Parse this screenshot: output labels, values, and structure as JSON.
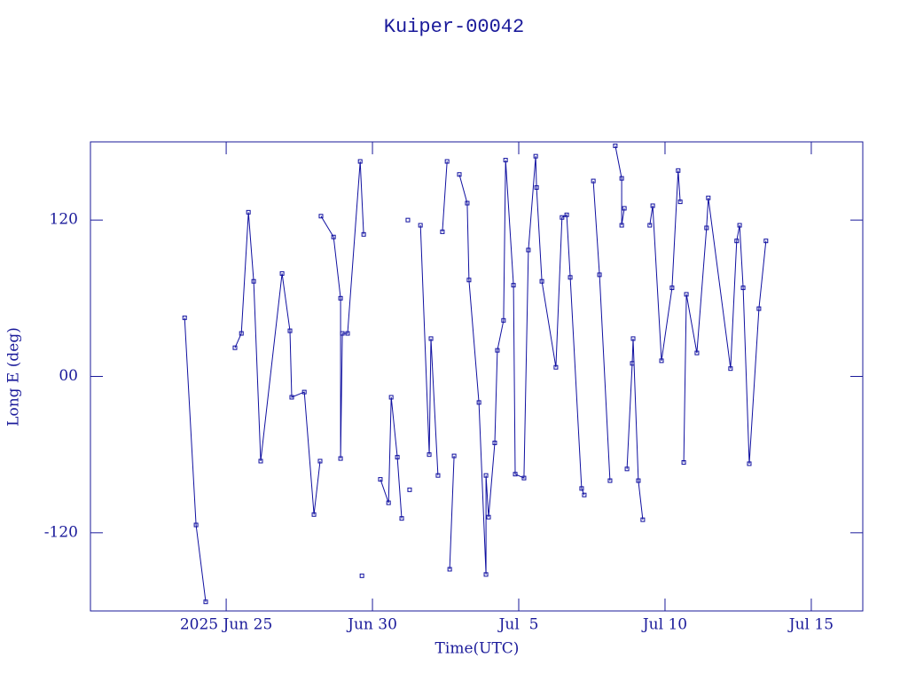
{
  "chart_data": {
    "type": "line",
    "title": "Kuiper-00042",
    "x_label": "Time(UTC)",
    "y_label": "Long E (deg)",
    "xlim": [
      -4.64,
      21.76
    ],
    "ylim": [
      -180,
      180
    ],
    "xticks": [
      {
        "value": 0,
        "label": "2025 Jun 25"
      },
      {
        "value": 5,
        "label": "Jun 30"
      },
      {
        "value": 10,
        "label": "Jul  5"
      },
      {
        "value": 15,
        "label": "Jul 10"
      },
      {
        "value": 20,
        "label": "Jul 15"
      }
    ],
    "yticks": [
      -120,
      {
        "value": 0,
        "label": "00"
      },
      120
    ],
    "series": [
      {
        "color": "#1010a0",
        "x": [
          -1.42,
          -1.03,
          -0.7,
          null,
          0.3,
          0.52,
          0.76,
          0.94,
          1.18,
          1.91,
          2.18,
          2.24,
          2.67,
          3.0,
          3.21,
          null,
          3.24,
          3.67,
          3.91,
          3.91,
          3.97,
          4.15,
          4.58,
          4.7,
          null,
          4.64,
          null,
          5.27,
          5.55,
          5.64,
          5.85,
          6.0,
          null,
          6.21,
          null,
          6.27,
          null,
          6.64,
          6.94,
          7.0,
          7.24,
          null,
          7.39,
          7.55,
          null,
          7.64,
          7.79,
          null,
          7.97,
          8.24,
          8.3,
          8.64,
          8.88,
          8.88,
          8.97,
          9.18,
          9.27,
          9.48,
          9.55,
          9.82,
          9.88,
          10.18,
          10.33,
          10.58,
          10.61,
          10.79,
          11.27,
          11.48,
          11.64,
          11.76,
          12.15,
          12.24,
          null,
          12.55,
          12.76,
          13.12,
          null,
          13.3,
          13.52,
          13.52,
          13.61,
          null,
          13.7,
          13.88,
          13.91,
          14.09,
          14.24,
          null,
          14.48,
          14.58,
          14.88,
          15.24,
          15.45,
          15.52,
          null,
          15.64,
          15.73,
          16.09,
          16.42,
          16.48,
          17.24,
          17.45,
          17.55,
          17.67,
          17.88,
          18.21,
          18.45
        ],
        "values": [
          45,
          -114,
          -173,
          null,
          22,
          33,
          126,
          73,
          -65,
          79,
          35,
          -16,
          -12,
          -106,
          -65,
          null,
          123,
          107,
          60,
          -63,
          33,
          33,
          165,
          109,
          null,
          -153,
          null,
          -79,
          -97,
          -16,
          -62,
          -109,
          null,
          120,
          null,
          -87,
          null,
          116,
          -60,
          29,
          -76,
          null,
          111,
          165,
          null,
          -148,
          -61,
          null,
          155,
          133,
          74,
          -20,
          -152,
          -76,
          -108,
          -51,
          20,
          43,
          166,
          70,
          -75,
          -78,
          97,
          169,
          145,
          73,
          7,
          122,
          124,
          76,
          -86,
          -91,
          null,
          150,
          78,
          -80,
          null,
          177,
          152,
          116,
          129,
          null,
          -71,
          10,
          29,
          -80,
          -110,
          null,
          116,
          131,
          12,
          68,
          158,
          134,
          null,
          -66,
          63,
          18,
          114,
          137,
          6,
          104,
          116,
          68,
          -67,
          52,
          104
        ]
      }
    ]
  }
}
